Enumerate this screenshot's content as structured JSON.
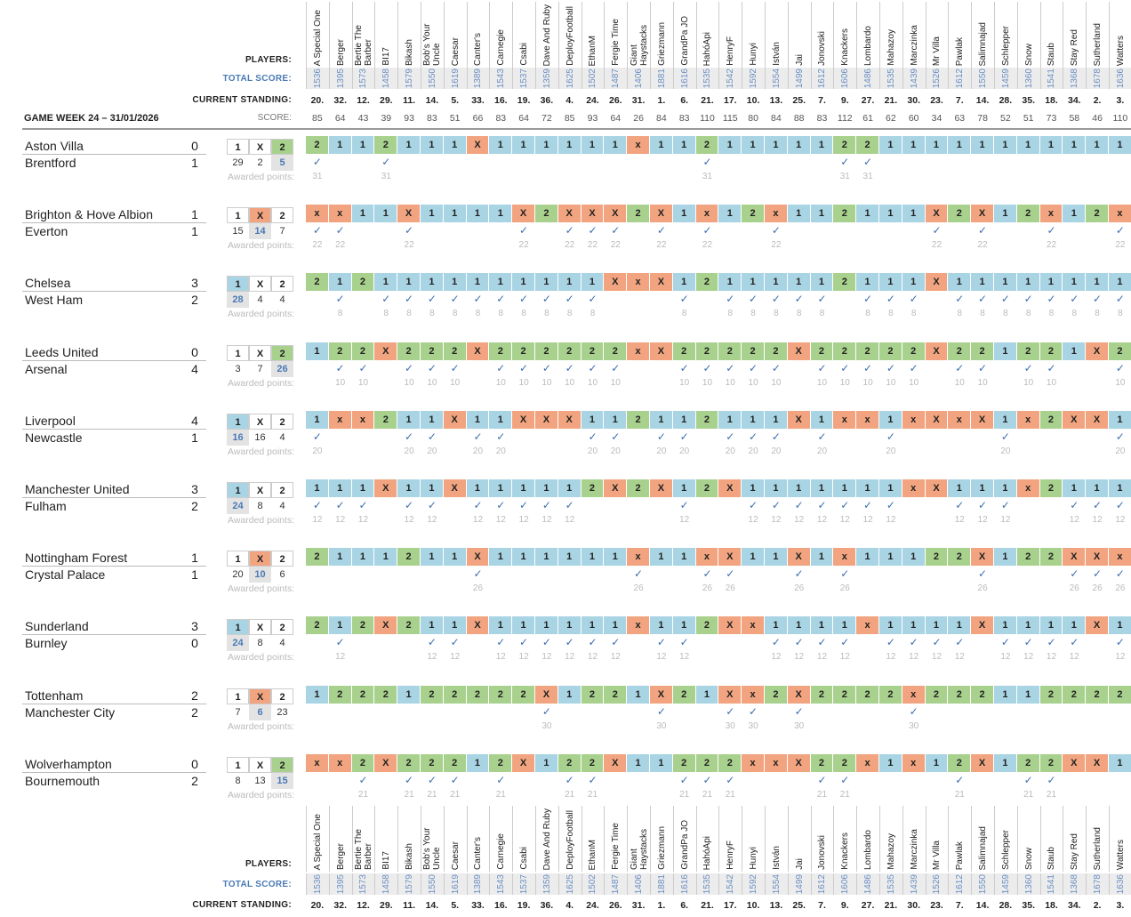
{
  "header": {
    "players_label": "PLAYERS:",
    "total_label": "TOTAL SCORE:",
    "standing_label": "CURRENT STANDING:",
    "score_label": "SCORE:",
    "gameweek": "GAME WEEK 24 – 31/01/2026"
  },
  "awarded_label": "Awarded points:",
  "colors": {
    "pick_1": "#a9d4e4",
    "pick_x": "#f1a47f",
    "pick_2": "#a9d18e",
    "accent": "#4a7ab5"
  },
  "players": [
    {
      "name": "A Special One",
      "total": "1536",
      "standing": "20.",
      "score": "85"
    },
    {
      "name": "Berger",
      "total": "1395",
      "standing": "32.",
      "score": "64"
    },
    {
      "name": "Bertie The Barber",
      "total": "1573",
      "standing": "12.",
      "score": "43"
    },
    {
      "name": "BI17",
      "total": "1458",
      "standing": "29.",
      "score": "39"
    },
    {
      "name": "Bikash",
      "total": "1579",
      "standing": "11.",
      "score": "93"
    },
    {
      "name": "Bob's Your Uncle",
      "total": "1550",
      "standing": "14.",
      "score": "83"
    },
    {
      "name": "Caesar",
      "total": "1619",
      "standing": "5.",
      "score": "51"
    },
    {
      "name": "Canter's",
      "total": "1389",
      "standing": "33.",
      "score": "66"
    },
    {
      "name": "Carnegie",
      "total": "1543",
      "standing": "16.",
      "score": "83"
    },
    {
      "name": "Csabi",
      "total": "1537",
      "standing": "19.",
      "score": "64"
    },
    {
      "name": "Dave And Ruby",
      "total": "1359",
      "standing": "36.",
      "score": "72"
    },
    {
      "name": "DeployFootball",
      "total": "1625",
      "standing": "4.",
      "score": "85"
    },
    {
      "name": "EthanM",
      "total": "1502",
      "standing": "24.",
      "score": "93"
    },
    {
      "name": "Fergie Time",
      "total": "1487",
      "standing": "26.",
      "score": "64"
    },
    {
      "name": "Giant Haystacks",
      "total": "1406",
      "standing": "31.",
      "score": "26"
    },
    {
      "name": "Griezmann",
      "total": "1881",
      "standing": "1.",
      "score": "84"
    },
    {
      "name": "GrandPa JO",
      "total": "1616",
      "standing": "6.",
      "score": "83"
    },
    {
      "name": "HahóApi",
      "total": "1535",
      "standing": "21.",
      "score": "110"
    },
    {
      "name": "HenryF",
      "total": "1542",
      "standing": "17.",
      "score": "115"
    },
    {
      "name": "Hunyi",
      "total": "1592",
      "standing": "10.",
      "score": "80"
    },
    {
      "name": "István",
      "total": "1554",
      "standing": "13.",
      "score": "84"
    },
    {
      "name": "Jai",
      "total": "1499",
      "standing": "25.",
      "score": "88"
    },
    {
      "name": "Jonovski",
      "total": "1612",
      "standing": "7.",
      "score": "83"
    },
    {
      "name": "Knackers",
      "total": "1606",
      "standing": "9.",
      "score": "112"
    },
    {
      "name": "Lombardo",
      "total": "1486",
      "standing": "27.",
      "score": "61"
    },
    {
      "name": "Mahazoy",
      "total": "1535",
      "standing": "21.",
      "score": "62"
    },
    {
      "name": "Marczinka",
      "total": "1439",
      "standing": "30.",
      "score": "60"
    },
    {
      "name": "Mr Villa",
      "total": "1526",
      "standing": "23.",
      "score": "34"
    },
    {
      "name": "Pawlak",
      "total": "1612",
      "standing": "7.",
      "score": "63"
    },
    {
      "name": "Salimnajad",
      "total": "1550",
      "standing": "14.",
      "score": "78"
    },
    {
      "name": "Schlepper",
      "total": "1459",
      "standing": "28.",
      "score": "52"
    },
    {
      "name": "Snow",
      "total": "1360",
      "standing": "35.",
      "score": "51"
    },
    {
      "name": "Staub",
      "total": "1541",
      "standing": "18.",
      "score": "73"
    },
    {
      "name": "Stay Red",
      "total": "1368",
      "standing": "34.",
      "score": "58"
    },
    {
      "name": "Sutherland",
      "total": "1678",
      "standing": "2.",
      "score": "46"
    },
    {
      "name": "Watters",
      "total": "1636",
      "standing": "3.",
      "score": "110"
    }
  ],
  "matches": [
    {
      "home": "Aston Villa",
      "away": "Brentford",
      "home_goals": "0",
      "away_goals": "1",
      "result": "2",
      "options": [
        "1",
        "X",
        "2"
      ],
      "counts": [
        "29",
        "2",
        "5"
      ],
      "points": "31",
      "picks": [
        "2",
        "1",
        "1",
        "2",
        "1",
        "1",
        "1",
        "X",
        "1",
        "1",
        "1",
        "1",
        "1",
        "1",
        "x",
        "1",
        "1",
        "2",
        "1",
        "1",
        "1",
        "1",
        "1",
        "2",
        "2",
        "1",
        "1",
        "1",
        "1",
        "1",
        "1",
        "1",
        "1",
        "1",
        "1",
        "1"
      ]
    },
    {
      "home": "Brighton & Hove Albion",
      "away": "Everton",
      "home_goals": "1",
      "away_goals": "1",
      "result": "X",
      "options": [
        "1",
        "X",
        "2"
      ],
      "counts": [
        "15",
        "14",
        "7"
      ],
      "points": "22",
      "picks": [
        "x",
        "x",
        "1",
        "1",
        "X",
        "1",
        "1",
        "1",
        "1",
        "X",
        "2",
        "X",
        "X",
        "X",
        "2",
        "X",
        "1",
        "x",
        "1",
        "2",
        "x",
        "1",
        "1",
        "2",
        "1",
        "1",
        "1",
        "X",
        "2",
        "X",
        "1",
        "2",
        "x",
        "1",
        "2",
        "x"
      ]
    },
    {
      "home": "Chelsea",
      "away": "West Ham",
      "home_goals": "3",
      "away_goals": "2",
      "result": "1",
      "options": [
        "1",
        "X",
        "2"
      ],
      "counts": [
        "28",
        "4",
        "4"
      ],
      "points": "8",
      "picks": [
        "2",
        "1",
        "2",
        "1",
        "1",
        "1",
        "1",
        "1",
        "1",
        "1",
        "1",
        "1",
        "1",
        "X",
        "x",
        "X",
        "1",
        "2",
        "1",
        "1",
        "1",
        "1",
        "1",
        "2",
        "1",
        "1",
        "1",
        "X",
        "1",
        "1",
        "1",
        "1",
        "1",
        "1",
        "1",
        "1"
      ]
    },
    {
      "home": "Leeds United",
      "away": "Arsenal",
      "home_goals": "0",
      "away_goals": "4",
      "result": "2",
      "options": [
        "1",
        "X",
        "2"
      ],
      "counts": [
        "3",
        "7",
        "26"
      ],
      "points": "10",
      "picks": [
        "1",
        "2",
        "2",
        "X",
        "2",
        "2",
        "2",
        "X",
        "2",
        "2",
        "2",
        "2",
        "2",
        "2",
        "x",
        "X",
        "2",
        "2",
        "2",
        "2",
        "2",
        "X",
        "2",
        "2",
        "2",
        "2",
        "2",
        "X",
        "2",
        "2",
        "1",
        "2",
        "2",
        "1",
        "X",
        "2"
      ]
    },
    {
      "home": "Liverpool",
      "away": "Newcastle",
      "home_goals": "4",
      "away_goals": "1",
      "result": "1",
      "options": [
        "1",
        "X",
        "2"
      ],
      "counts": [
        "16",
        "16",
        "4"
      ],
      "points": "20",
      "picks": [
        "1",
        "x",
        "x",
        "2",
        "1",
        "1",
        "X",
        "1",
        "1",
        "X",
        "X",
        "X",
        "1",
        "1",
        "2",
        "1",
        "1",
        "2",
        "1",
        "1",
        "1",
        "X",
        "1",
        "x",
        "x",
        "1",
        "x",
        "X",
        "x",
        "X",
        "1",
        "x",
        "2",
        "X",
        "X",
        "1"
      ]
    },
    {
      "home": "Manchester United",
      "away": "Fulham",
      "home_goals": "3",
      "away_goals": "2",
      "result": "1",
      "options": [
        "1",
        "X",
        "2"
      ],
      "counts": [
        "24",
        "8",
        "4"
      ],
      "points": "12",
      "picks": [
        "1",
        "1",
        "1",
        "X",
        "1",
        "1",
        "X",
        "1",
        "1",
        "1",
        "1",
        "1",
        "2",
        "X",
        "2",
        "X",
        "1",
        "2",
        "X",
        "1",
        "1",
        "1",
        "1",
        "1",
        "1",
        "1",
        "x",
        "X",
        "1",
        "1",
        "1",
        "x",
        "2",
        "1",
        "1",
        "1"
      ]
    },
    {
      "home": "Nottingham Forest",
      "away": "Crystal Palace",
      "home_goals": "1",
      "away_goals": "1",
      "result": "X",
      "options": [
        "1",
        "X",
        "2"
      ],
      "counts": [
        "20",
        "10",
        "6"
      ],
      "points": "26",
      "picks": [
        "2",
        "1",
        "1",
        "1",
        "2",
        "1",
        "1",
        "X",
        "1",
        "1",
        "1",
        "1",
        "1",
        "1",
        "x",
        "1",
        "1",
        "x",
        "X",
        "1",
        "1",
        "X",
        "1",
        "x",
        "1",
        "1",
        "1",
        "2",
        "2",
        "X",
        "1",
        "2",
        "2",
        "X",
        "X",
        "x"
      ]
    },
    {
      "home": "Sunderland",
      "away": "Burnley",
      "home_goals": "3",
      "away_goals": "0",
      "result": "1",
      "options": [
        "1",
        "X",
        "2"
      ],
      "counts": [
        "24",
        "8",
        "4"
      ],
      "points": "12",
      "picks": [
        "2",
        "1",
        "2",
        "X",
        "2",
        "1",
        "1",
        "X",
        "1",
        "1",
        "1",
        "1",
        "1",
        "1",
        "x",
        "1",
        "1",
        "2",
        "X",
        "x",
        "1",
        "1",
        "1",
        "1",
        "x",
        "1",
        "1",
        "1",
        "1",
        "X",
        "1",
        "1",
        "1",
        "1",
        "X",
        "1"
      ]
    },
    {
      "home": "Tottenham",
      "away": "Manchester City",
      "home_goals": "2",
      "away_goals": "2",
      "result": "X",
      "options": [
        "1",
        "X",
        "2"
      ],
      "counts": [
        "7",
        "6",
        "23"
      ],
      "points": "30",
      "picks": [
        "1",
        "2",
        "2",
        "2",
        "1",
        "2",
        "2",
        "2",
        "2",
        "2",
        "X",
        "1",
        "2",
        "2",
        "1",
        "X",
        "2",
        "1",
        "X",
        "x",
        "2",
        "X",
        "2",
        "2",
        "2",
        "2",
        "x",
        "2",
        "2",
        "2",
        "1",
        "1",
        "2",
        "2",
        "2",
        "2"
      ]
    },
    {
      "home": "Wolverhampton",
      "away": "Bournemouth",
      "home_goals": "0",
      "away_goals": "2",
      "result": "2",
      "options": [
        "1",
        "X",
        "2"
      ],
      "counts": [
        "8",
        "13",
        "15"
      ],
      "points": "21",
      "picks": [
        "x",
        "x",
        "2",
        "X",
        "2",
        "2",
        "2",
        "1",
        "2",
        "X",
        "1",
        "2",
        "2",
        "X",
        "1",
        "1",
        "2",
        "2",
        "2",
        "x",
        "x",
        "X",
        "2",
        "2",
        "x",
        "1",
        "x",
        "1",
        "2",
        "X",
        "1",
        "2",
        "2",
        "X",
        "X",
        "1"
      ]
    }
  ],
  "check_glyph": "✓"
}
